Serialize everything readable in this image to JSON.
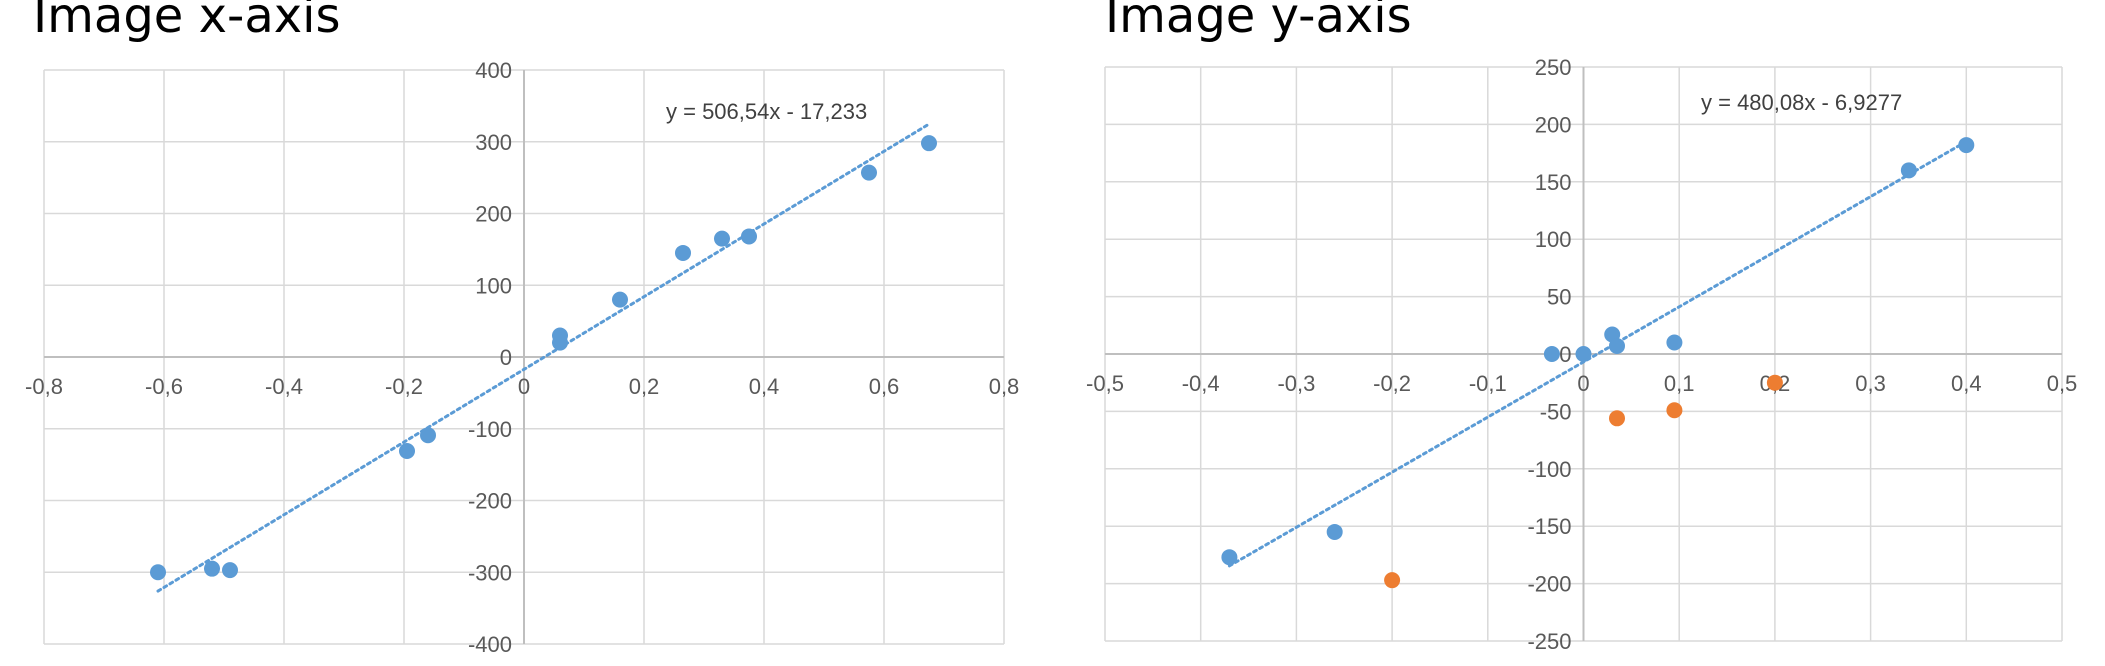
{
  "panels": [
    {
      "title": "Image x-axis"
    },
    {
      "title": "Image y-axis"
    }
  ],
  "chart_data": [
    {
      "type": "scatter",
      "title": "Image x-axis",
      "xlim": [
        -0.8,
        0.8
      ],
      "ylim": [
        -400,
        400
      ],
      "x_ticks": [
        -0.8,
        -0.6,
        -0.4,
        -0.2,
        0,
        0.2,
        0.4,
        0.6,
        0.8
      ],
      "y_ticks": [
        -400,
        -300,
        -200,
        -100,
        0,
        100,
        200,
        300,
        400
      ],
      "x_tick_labels": [
        "-0,8",
        "-0,6",
        "-0,4",
        "-0,2",
        "0",
        "0,2",
        "0,4",
        "0,6",
        "0,8"
      ],
      "y_tick_labels": [
        "-400",
        "-300",
        "-200",
        "-100",
        "0",
        "100",
        "200",
        "300",
        "400"
      ],
      "grid": true,
      "series": [
        {
          "color": "#5b9bd5",
          "points": [
            [
              -0.61,
              -300
            ],
            [
              -0.52,
              -295
            ],
            [
              -0.49,
              -297
            ],
            [
              -0.195,
              -131
            ],
            [
              -0.16,
              -109
            ],
            [
              0.06,
              30
            ],
            [
              0.06,
              20
            ],
            [
              0.16,
              80
            ],
            [
              0.265,
              145
            ],
            [
              0.33,
              165
            ],
            [
              0.375,
              168
            ],
            [
              0.575,
              257
            ],
            [
              0.675,
              298
            ]
          ]
        }
      ],
      "trendline": {
        "slope": 506.54,
        "intercept": -17.233,
        "x_range": [
          -0.61,
          0.675
        ],
        "color": "#5b9bd5",
        "label": "y = 506,54x - 17,233"
      }
    },
    {
      "type": "scatter",
      "title": "Image y-axis",
      "xlim": [
        -0.5,
        0.5
      ],
      "ylim": [
        -250,
        250
      ],
      "x_ticks": [
        -0.5,
        -0.4,
        -0.3,
        -0.2,
        -0.1,
        0,
        0.1,
        0.2,
        0.3,
        0.4,
        0.5
      ],
      "y_ticks": [
        -250,
        -200,
        -150,
        -100,
        -50,
        0,
        50,
        100,
        150,
        200,
        250
      ],
      "x_tick_labels": [
        "-0,5",
        "-0,4",
        "-0,3",
        "-0,2",
        "-0,1",
        "0",
        "0,1",
        "0,2",
        "0,3",
        "0,4",
        "0,5"
      ],
      "y_tick_labels": [
        "-250",
        "-200",
        "-150",
        "-100",
        "-50",
        "0",
        "50",
        "100",
        "150",
        "200",
        "250"
      ],
      "grid": true,
      "series": [
        {
          "color": "#5b9bd5",
          "points": [
            [
              -0.37,
              -177
            ],
            [
              -0.26,
              -155
            ],
            [
              -0.033,
              0
            ],
            [
              0,
              0
            ],
            [
              0.03,
              17
            ],
            [
              0.035,
              7
            ],
            [
              0.095,
              10
            ],
            [
              0.34,
              160
            ],
            [
              0.4,
              182
            ]
          ]
        },
        {
          "color": "#ed7d31",
          "points": [
            [
              -0.2,
              -197
            ],
            [
              0.035,
              -56
            ],
            [
              0.095,
              -49
            ],
            [
              0.2,
              -25
            ]
          ]
        }
      ],
      "trendline": {
        "slope": 480.08,
        "intercept": -6.9277,
        "x_range": [
          -0.37,
          0.4
        ],
        "color": "#5b9bd5",
        "label": "y = 480,08x - 6,9277"
      }
    }
  ]
}
